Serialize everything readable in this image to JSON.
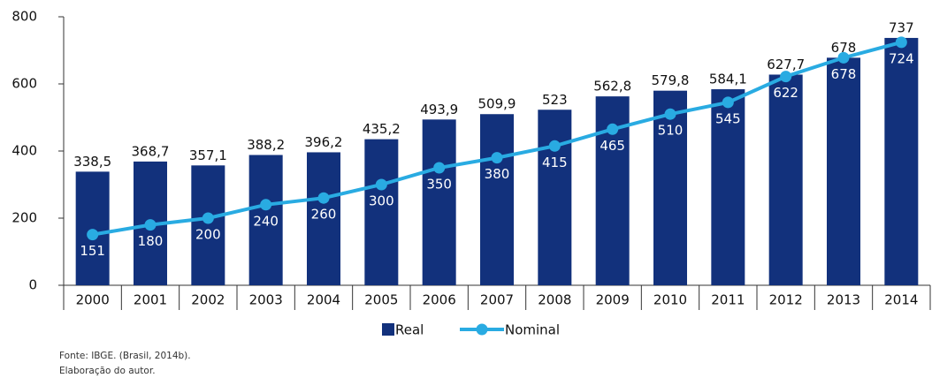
{
  "chart_data": {
    "type": "bar",
    "categories": [
      "2000",
      "2001",
      "2002",
      "2003",
      "2004",
      "2005",
      "2006",
      "2007",
      "2008",
      "2009",
      "2010",
      "2011",
      "2012",
      "2013",
      "2014"
    ],
    "series": [
      {
        "name": "Real",
        "type": "bar",
        "color": "#12317c",
        "values": [
          338.5,
          368.7,
          357.1,
          388.2,
          396.2,
          435.2,
          493.9,
          509.9,
          523,
          562.8,
          579.8,
          584.1,
          627.7,
          678,
          737
        ],
        "value_labels": [
          "338,5",
          "368,7",
          "357,1",
          "388,2",
          "396,2",
          "435,2",
          "493,9",
          "509,9",
          "523",
          "562,8",
          "579,8",
          "584,1",
          "627,7",
          "678",
          "737"
        ]
      },
      {
        "name": "Nominal",
        "type": "line",
        "color": "#29abe2",
        "values": [
          151,
          180,
          200,
          240,
          260,
          300,
          350,
          380,
          415,
          465,
          510,
          545,
          622,
          678,
          724
        ]
      }
    ],
    "ylim": [
      0,
      800
    ],
    "yticks": [
      0,
      200,
      400,
      600,
      800
    ],
    "grid": false,
    "legend": "bottom",
    "source": "Fonte: IBGE. (Brasil, 2014b).",
    "credit": "Elaboração do autor."
  }
}
